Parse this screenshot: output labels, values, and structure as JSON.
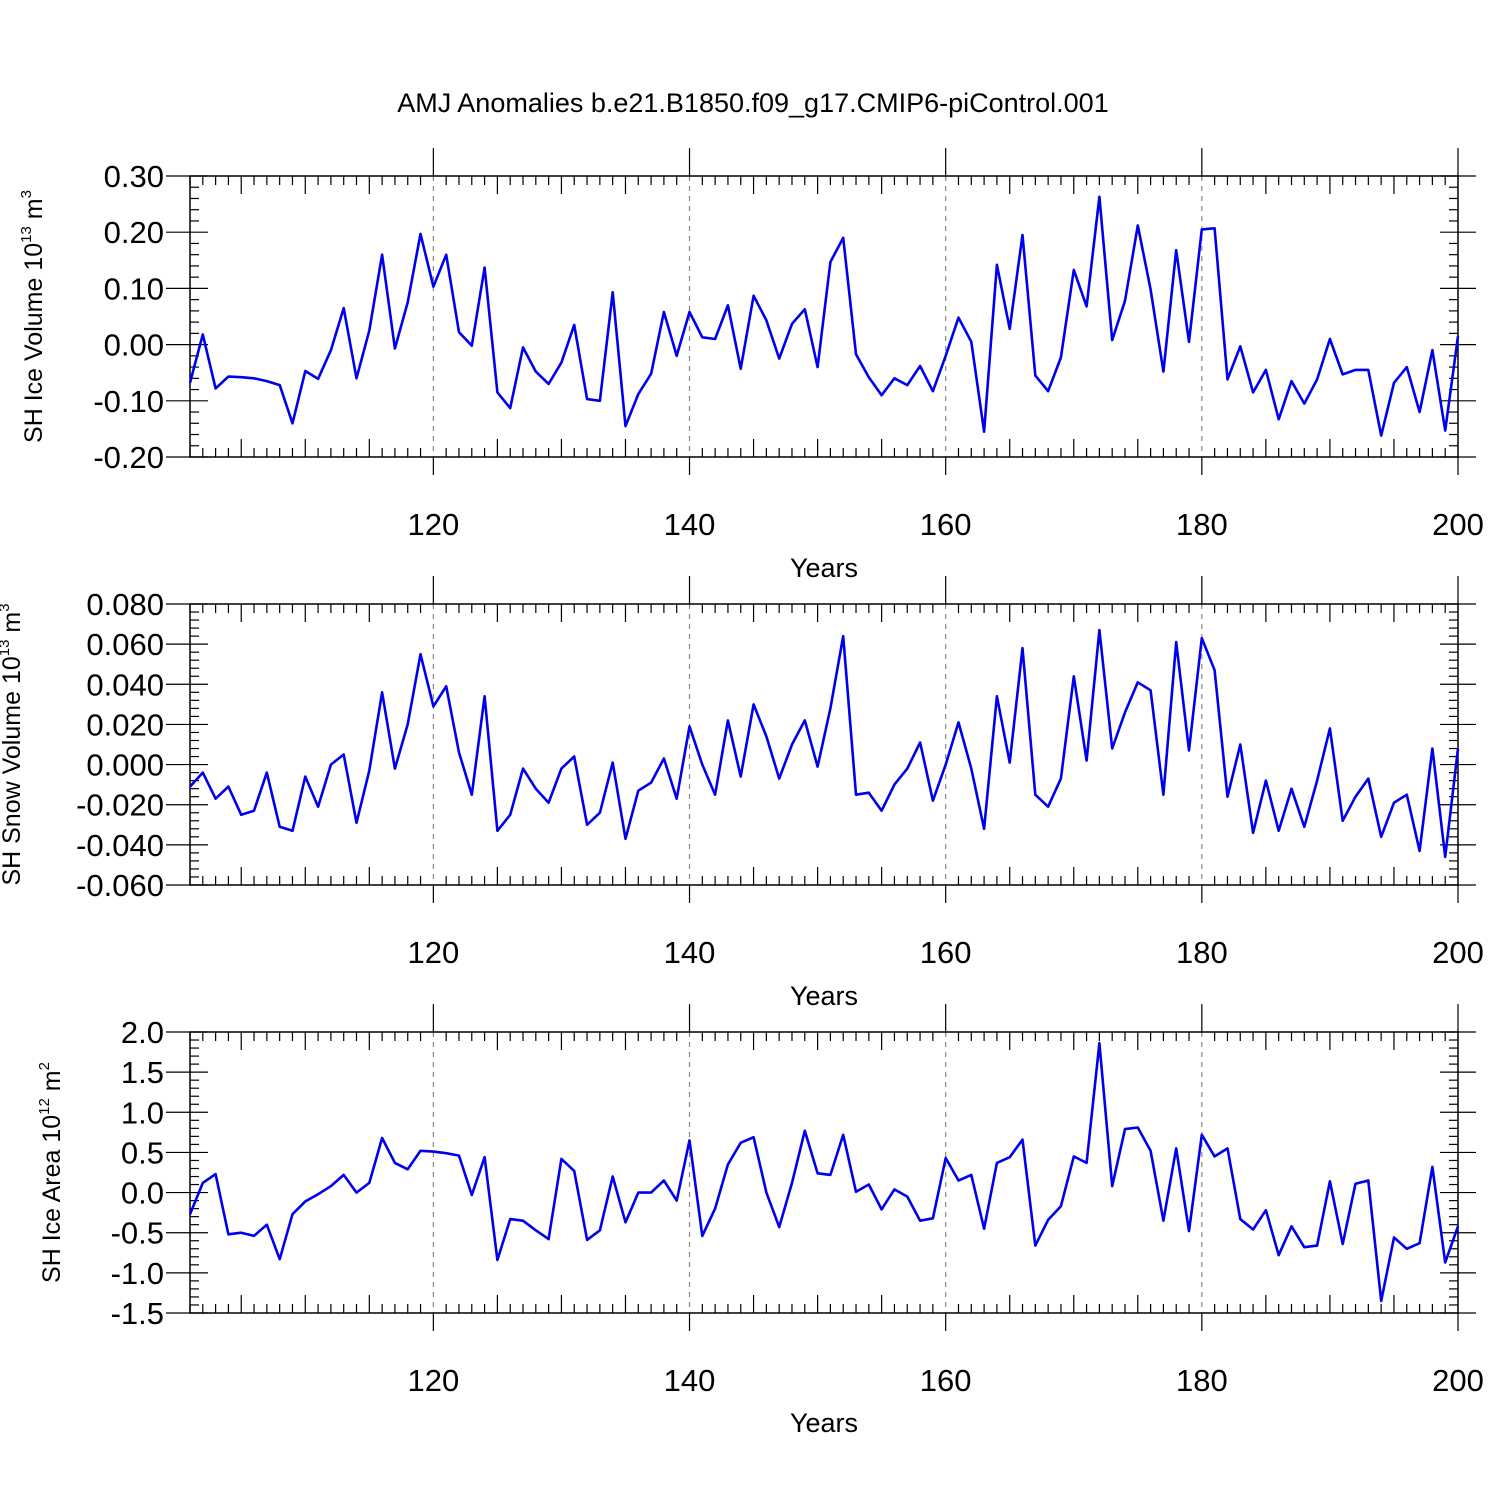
{
  "title": "AMJ Anomalies b.e21.B1850.f09_g17.CMIP6-piControl.001",
  "colors": {
    "line": "#0000ee",
    "axis": "#000000",
    "grid": "#888888"
  },
  "chart_data": [
    {
      "type": "line",
      "name": "ice-volume",
      "title": "AMJ Anomalies b.e21.B1850.f09_g17.CMIP6-piControl.001",
      "xlabel": "Years",
      "ylabel_main": "SH Ice Volume 10",
      "ylabel_exp": "13",
      "ylabel_unit": " m",
      "ylabel_unit_exp": "3",
      "xlim": [
        101,
        200
      ],
      "ylim": [
        -0.2,
        0.3
      ],
      "xticks": [
        120,
        140,
        160,
        180,
        200
      ],
      "yticks": [
        -0.2,
        -0.1,
        0.0,
        0.1,
        0.2,
        0.3
      ],
      "ytick_labels": [
        "-0.20",
        "-0.10",
        "0.00",
        "0.10",
        "0.20",
        "0.30"
      ],
      "x_start": 101,
      "values": [
        -0.068,
        0.018,
        -0.078,
        -0.057,
        -0.058,
        -0.06,
        -0.065,
        -0.072,
        -0.14,
        -0.047,
        -0.061,
        -0.01,
        0.065,
        -0.06,
        0.025,
        0.16,
        -0.007,
        0.075,
        0.197,
        0.103,
        0.16,
        0.022,
        -0.002,
        0.137,
        -0.085,
        -0.113,
        -0.005,
        -0.048,
        -0.07,
        -0.032,
        0.035,
        -0.097,
        -0.1,
        0.093,
        -0.145,
        -0.088,
        -0.052,
        0.058,
        -0.02,
        0.058,
        0.013,
        0.01,
        0.07,
        -0.043,
        0.087,
        0.043,
        -0.025,
        0.037,
        0.063,
        -0.04,
        0.147,
        0.19,
        -0.017,
        -0.058,
        -0.09,
        -0.06,
        -0.072,
        -0.038,
        -0.083,
        -0.02,
        0.048,
        0.005,
        -0.155,
        0.142,
        0.028,
        0.195,
        -0.055,
        -0.083,
        -0.023,
        0.133,
        0.068,
        0.263,
        0.008,
        0.078,
        0.212,
        0.098,
        -0.048,
        0.168,
        0.005,
        0.205,
        0.207,
        -0.062,
        -0.003,
        -0.085,
        -0.045,
        -0.133,
        -0.065,
        -0.105,
        -0.062,
        0.01,
        -0.053,
        -0.045,
        -0.045,
        -0.162,
        -0.068,
        -0.04,
        -0.12,
        -0.01,
        -0.153,
        0.015
      ]
    },
    {
      "type": "line",
      "name": "snow-volume",
      "title": "",
      "xlabel": "Years",
      "ylabel_main": "SH Snow Volume 10",
      "ylabel_exp": "13",
      "ylabel_unit": " m",
      "ylabel_unit_exp": "3",
      "xlim": [
        101,
        200
      ],
      "ylim": [
        -0.06,
        0.08
      ],
      "xticks": [
        120,
        140,
        160,
        180,
        200
      ],
      "yticks": [
        -0.06,
        -0.04,
        -0.02,
        0.0,
        0.02,
        0.04,
        0.06,
        0.08
      ],
      "ytick_labels": [
        "-0.060",
        "-0.040",
        "-0.020",
        "0.000",
        "0.020",
        "0.040",
        "0.060",
        "0.080"
      ],
      "x_start": 101,
      "values": [
        -0.011,
        -0.004,
        -0.017,
        -0.011,
        -0.025,
        -0.023,
        -0.004,
        -0.031,
        -0.033,
        -0.006,
        -0.021,
        0.0,
        0.005,
        -0.029,
        -0.003,
        0.036,
        -0.002,
        0.02,
        0.055,
        0.029,
        0.039,
        0.006,
        -0.015,
        0.034,
        -0.033,
        -0.025,
        -0.002,
        -0.012,
        -0.019,
        -0.002,
        0.004,
        -0.03,
        -0.024,
        0.001,
        -0.037,
        -0.013,
        -0.009,
        0.003,
        -0.017,
        0.019,
        0.0,
        -0.015,
        0.022,
        -0.006,
        0.03,
        0.014,
        -0.007,
        0.01,
        0.022,
        -0.001,
        0.028,
        0.064,
        -0.015,
        -0.014,
        -0.023,
        -0.01,
        -0.002,
        0.011,
        -0.018,
        0.0,
        0.021,
        -0.002,
        -0.032,
        0.034,
        0.001,
        0.058,
        -0.015,
        -0.021,
        -0.007,
        0.044,
        0.002,
        0.067,
        0.008,
        0.026,
        0.041,
        0.037,
        -0.015,
        0.061,
        0.007,
        0.063,
        0.047,
        -0.016,
        0.01,
        -0.034,
        -0.008,
        -0.033,
        -0.012,
        -0.031,
        -0.008,
        0.018,
        -0.028,
        -0.016,
        -0.007,
        -0.036,
        -0.019,
        -0.015,
        -0.043,
        0.008,
        -0.046,
        0.008
      ]
    },
    {
      "type": "line",
      "name": "ice-area",
      "title": "",
      "xlabel": "Years",
      "ylabel_main": "SH Ice Area 10",
      "ylabel_exp": "12",
      "ylabel_unit": " m",
      "ylabel_unit_exp": "2",
      "xlim": [
        101,
        200
      ],
      "ylim": [
        -1.5,
        2.0
      ],
      "xticks": [
        120,
        140,
        160,
        180,
        200
      ],
      "yticks": [
        -1.5,
        -1.0,
        -0.5,
        0.0,
        0.5,
        1.0,
        1.5,
        2.0
      ],
      "ytick_labels": [
        "-1.5",
        "-1.0",
        "-0.5",
        "0.0",
        "0.5",
        "1.0",
        "1.5",
        "2.0"
      ],
      "x_start": 101,
      "values": [
        -0.27,
        0.12,
        0.23,
        -0.52,
        -0.5,
        -0.54,
        -0.4,
        -0.83,
        -0.27,
        -0.11,
        -0.02,
        0.08,
        0.22,
        0.0,
        0.12,
        0.68,
        0.37,
        0.29,
        0.52,
        0.51,
        0.49,
        0.46,
        -0.03,
        0.44,
        -0.84,
        -0.33,
        -0.35,
        -0.47,
        -0.58,
        0.42,
        0.27,
        -0.59,
        -0.47,
        0.2,
        -0.37,
        0.0,
        0.0,
        0.15,
        -0.1,
        0.65,
        -0.54,
        -0.2,
        0.35,
        0.62,
        0.69,
        0.0,
        -0.43,
        0.12,
        0.77,
        0.24,
        0.22,
        0.72,
        0.01,
        0.1,
        -0.21,
        0.04,
        -0.05,
        -0.35,
        -0.32,
        0.43,
        0.15,
        0.22,
        -0.45,
        0.37,
        0.44,
        0.66,
        -0.66,
        -0.34,
        -0.17,
        0.45,
        0.37,
        1.86,
        0.08,
        0.79,
        0.81,
        0.52,
        -0.35,
        0.55,
        -0.48,
        0.72,
        0.45,
        0.55,
        -0.33,
        -0.46,
        -0.22,
        -0.78,
        -0.42,
        -0.68,
        -0.66,
        0.14,
        -0.64,
        0.11,
        0.15,
        -1.35,
        -0.56,
        -0.7,
        -0.63,
        0.32,
        -0.87,
        -0.42
      ]
    }
  ]
}
